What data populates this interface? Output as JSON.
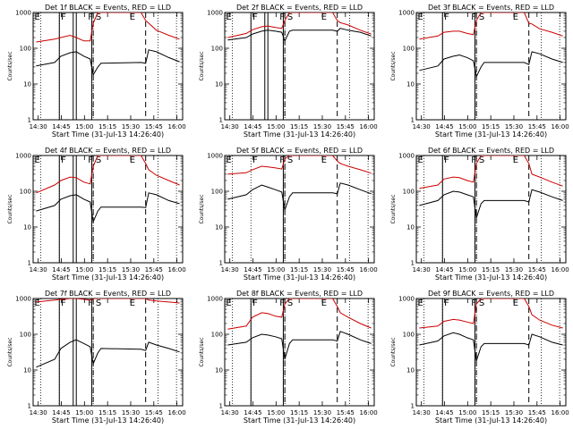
{
  "chart_data": {
    "type": "line",
    "x_label": "Start Time (31-Jul-13 14:26:40)",
    "y_label": "Counts/sec",
    "x_ticks": [
      "14:30",
      "14:45",
      "15:00",
      "15:15",
      "15:30",
      "15:45",
      "16:00"
    ],
    "y_ticks": [
      "1",
      "10",
      "100",
      "1000"
    ],
    "y_scale": "log",
    "ylim": [
      1,
      1000
    ],
    "x_range_minutes": [
      0,
      97
    ],
    "grid": false,
    "series_colors": {
      "events": "#000000",
      "lld": "#cc0000"
    },
    "dotted_markers_min": [
      5,
      17,
      39,
      81,
      93
    ],
    "dashed_markers_min": [
      39,
      73
    ],
    "flag_letters": [
      "E",
      "F",
      "F",
      "S",
      "E"
    ],
    "panels": [
      {
        "title": "Det 1f BLACK = Events, RED = LLD",
        "solid_markers_min": [
          17,
          26,
          28,
          38
        ],
        "events": [
          [
            2,
            32
          ],
          [
            14,
            40
          ],
          [
            18,
            60
          ],
          [
            24,
            75
          ],
          [
            28,
            80
          ],
          [
            33,
            60
          ],
          [
            37,
            50
          ],
          [
            39,
            18
          ],
          [
            42,
            30
          ],
          [
            44,
            38
          ],
          [
            70,
            40
          ],
          [
            73,
            38
          ],
          [
            75,
            90
          ],
          [
            80,
            80
          ],
          [
            88,
            55
          ],
          [
            95,
            42
          ]
        ],
        "lld": [
          [
            2,
            150
          ],
          [
            14,
            180
          ],
          [
            18,
            200
          ],
          [
            24,
            230
          ],
          [
            28,
            200
          ],
          [
            33,
            160
          ],
          [
            37,
            160
          ],
          [
            39,
            500
          ],
          [
            42,
            1000
          ],
          [
            70,
            1000
          ],
          [
            73,
            600
          ],
          [
            75,
            500
          ],
          [
            80,
            320
          ],
          [
            88,
            230
          ],
          [
            95,
            180
          ]
        ]
      },
      {
        "title": "Det 2f BLACK = Events, RED = LLD",
        "solid_markers_min": [
          17,
          26,
          28,
          38
        ],
        "events": [
          [
            2,
            170
          ],
          [
            14,
            200
          ],
          [
            18,
            250
          ],
          [
            24,
            300
          ],
          [
            28,
            320
          ],
          [
            33,
            300
          ],
          [
            37,
            280
          ],
          [
            39,
            160
          ],
          [
            42,
            300
          ],
          [
            44,
            320
          ],
          [
            70,
            320
          ],
          [
            73,
            300
          ],
          [
            75,
            360
          ],
          [
            80,
            320
          ],
          [
            88,
            280
          ],
          [
            95,
            220
          ]
        ],
        "lld": [
          [
            2,
            200
          ],
          [
            14,
            260
          ],
          [
            18,
            330
          ],
          [
            24,
            400
          ],
          [
            28,
            420
          ],
          [
            33,
            380
          ],
          [
            37,
            360
          ],
          [
            39,
            600
          ],
          [
            42,
            1000
          ],
          [
            70,
            1000
          ],
          [
            73,
            600
          ],
          [
            75,
            520
          ],
          [
            80,
            450
          ],
          [
            88,
            320
          ],
          [
            95,
            250
          ]
        ]
      },
      {
        "title": "Det 3f BLACK = Events, RED = LLD",
        "solid_markers_min": [
          17,
          38
        ],
        "events": [
          [
            2,
            24
          ],
          [
            14,
            32
          ],
          [
            18,
            50
          ],
          [
            24,
            60
          ],
          [
            28,
            65
          ],
          [
            33,
            55
          ],
          [
            37,
            45
          ],
          [
            39,
            16
          ],
          [
            42,
            30
          ],
          [
            44,
            40
          ],
          [
            70,
            40
          ],
          [
            73,
            35
          ],
          [
            75,
            80
          ],
          [
            80,
            70
          ],
          [
            88,
            50
          ],
          [
            95,
            40
          ]
        ],
        "lld": [
          [
            2,
            180
          ],
          [
            14,
            220
          ],
          [
            18,
            280
          ],
          [
            24,
            300
          ],
          [
            28,
            300
          ],
          [
            33,
            260
          ],
          [
            37,
            240
          ],
          [
            39,
            600
          ],
          [
            42,
            1000
          ],
          [
            70,
            1000
          ],
          [
            73,
            500
          ],
          [
            75,
            480
          ],
          [
            80,
            350
          ],
          [
            88,
            280
          ],
          [
            95,
            220
          ]
        ]
      },
      {
        "title": "Det 4f BLACK = Events, RED = LLD",
        "solid_markers_min": [
          17,
          26,
          28,
          38
        ],
        "events": [
          [
            2,
            28
          ],
          [
            14,
            40
          ],
          [
            18,
            60
          ],
          [
            24,
            75
          ],
          [
            28,
            80
          ],
          [
            33,
            60
          ],
          [
            37,
            50
          ],
          [
            39,
            14
          ],
          [
            42,
            28
          ],
          [
            44,
            36
          ],
          [
            70,
            36
          ],
          [
            73,
            35
          ],
          [
            75,
            90
          ],
          [
            80,
            80
          ],
          [
            88,
            55
          ],
          [
            95,
            45
          ]
        ],
        "lld": [
          [
            2,
            90
          ],
          [
            14,
            150
          ],
          [
            18,
            200
          ],
          [
            24,
            250
          ],
          [
            28,
            240
          ],
          [
            33,
            180
          ],
          [
            37,
            160
          ],
          [
            39,
            500
          ],
          [
            42,
            1000
          ],
          [
            70,
            1000
          ],
          [
            73,
            600
          ],
          [
            75,
            400
          ],
          [
            80,
            280
          ],
          [
            88,
            200
          ],
          [
            95,
            150
          ]
        ]
      },
      {
        "title": "Det 5f BLACK = Events, RED = LLD",
        "solid_markers_min": [
          38
        ],
        "events": [
          [
            2,
            60
          ],
          [
            14,
            80
          ],
          [
            18,
            110
          ],
          [
            24,
            150
          ],
          [
            28,
            130
          ],
          [
            33,
            110
          ],
          [
            37,
            95
          ],
          [
            39,
            30
          ],
          [
            42,
            70
          ],
          [
            44,
            90
          ],
          [
            70,
            90
          ],
          [
            73,
            85
          ],
          [
            75,
            170
          ],
          [
            80,
            150
          ],
          [
            88,
            110
          ],
          [
            95,
            85
          ]
        ],
        "lld": [
          [
            2,
            300
          ],
          [
            14,
            330
          ],
          [
            18,
            400
          ],
          [
            24,
            500
          ],
          [
            28,
            480
          ],
          [
            33,
            450
          ],
          [
            37,
            420
          ],
          [
            39,
            800
          ],
          [
            42,
            1000
          ],
          [
            70,
            1000
          ],
          [
            73,
            700
          ],
          [
            75,
            600
          ],
          [
            80,
            500
          ],
          [
            88,
            400
          ],
          [
            95,
            320
          ]
        ]
      },
      {
        "title": "Det 6f BLACK = Events, RED = LLD",
        "solid_markers_min": [
          17,
          38
        ],
        "events": [
          [
            2,
            40
          ],
          [
            14,
            55
          ],
          [
            18,
            80
          ],
          [
            24,
            100
          ],
          [
            28,
            95
          ],
          [
            33,
            80
          ],
          [
            37,
            70
          ],
          [
            39,
            18
          ],
          [
            42,
            45
          ],
          [
            44,
            55
          ],
          [
            70,
            55
          ],
          [
            73,
            50
          ],
          [
            75,
            110
          ],
          [
            80,
            95
          ],
          [
            88,
            70
          ],
          [
            95,
            55
          ]
        ],
        "lld": [
          [
            2,
            120
          ],
          [
            14,
            150
          ],
          [
            18,
            220
          ],
          [
            24,
            250
          ],
          [
            28,
            240
          ],
          [
            33,
            200
          ],
          [
            37,
            180
          ],
          [
            39,
            600
          ],
          [
            42,
            1000
          ],
          [
            70,
            1000
          ],
          [
            73,
            600
          ],
          [
            75,
            300
          ],
          [
            80,
            250
          ],
          [
            88,
            180
          ],
          [
            95,
            140
          ]
        ]
      },
      {
        "title": "Det 7f BLACK = Events, RED = LLD",
        "solid_markers_min": [
          17,
          26,
          28,
          38
        ],
        "events": [
          [
            2,
            12
          ],
          [
            14,
            20
          ],
          [
            18,
            40
          ],
          [
            24,
            60
          ],
          [
            28,
            70
          ],
          [
            33,
            55
          ],
          [
            37,
            45
          ],
          [
            39,
            15
          ],
          [
            42,
            30
          ],
          [
            44,
            40
          ],
          [
            70,
            38
          ],
          [
            73,
            35
          ],
          [
            75,
            60
          ],
          [
            80,
            50
          ],
          [
            88,
            40
          ],
          [
            95,
            32
          ]
        ],
        "lld": [
          [
            2,
            800
          ],
          [
            14,
            900
          ],
          [
            18,
            950
          ],
          [
            24,
            1000
          ],
          [
            28,
            1000
          ],
          [
            33,
            950
          ],
          [
            37,
            900
          ],
          [
            39,
            1000
          ],
          [
            42,
            1000
          ],
          [
            70,
            1000
          ],
          [
            73,
            1000
          ],
          [
            75,
            900
          ],
          [
            80,
            850
          ],
          [
            88,
            800
          ],
          [
            95,
            750
          ]
        ]
      },
      {
        "title": "Det 8f BLACK = Events, RED = LLD",
        "solid_markers_min": [
          17,
          38
        ],
        "events": [
          [
            2,
            50
          ],
          [
            14,
            60
          ],
          [
            18,
            80
          ],
          [
            24,
            100
          ],
          [
            28,
            95
          ],
          [
            33,
            85
          ],
          [
            37,
            75
          ],
          [
            39,
            20
          ],
          [
            42,
            55
          ],
          [
            44,
            70
          ],
          [
            70,
            70
          ],
          [
            73,
            65
          ],
          [
            75,
            120
          ],
          [
            80,
            100
          ],
          [
            88,
            70
          ],
          [
            95,
            55
          ]
        ],
        "lld": [
          [
            2,
            140
          ],
          [
            14,
            170
          ],
          [
            18,
            300
          ],
          [
            24,
            400
          ],
          [
            28,
            380
          ],
          [
            33,
            320
          ],
          [
            37,
            300
          ],
          [
            39,
            700
          ],
          [
            42,
            1000
          ],
          [
            70,
            1000
          ],
          [
            73,
            600
          ],
          [
            75,
            400
          ],
          [
            80,
            300
          ],
          [
            88,
            200
          ],
          [
            95,
            150
          ]
        ]
      },
      {
        "title": "Det 9f BLACK = Events, RED = LLD",
        "solid_markers_min": [
          17,
          38
        ],
        "events": [
          [
            2,
            50
          ],
          [
            14,
            65
          ],
          [
            18,
            90
          ],
          [
            24,
            110
          ],
          [
            28,
            100
          ],
          [
            33,
            80
          ],
          [
            37,
            70
          ],
          [
            39,
            18
          ],
          [
            42,
            45
          ],
          [
            44,
            55
          ],
          [
            70,
            55
          ],
          [
            73,
            50
          ],
          [
            75,
            100
          ],
          [
            80,
            85
          ],
          [
            88,
            60
          ],
          [
            95,
            50
          ]
        ],
        "lld": [
          [
            2,
            150
          ],
          [
            14,
            170
          ],
          [
            18,
            230
          ],
          [
            24,
            260
          ],
          [
            28,
            250
          ],
          [
            33,
            220
          ],
          [
            37,
            200
          ],
          [
            39,
            700
          ],
          [
            42,
            1000
          ],
          [
            70,
            1000
          ],
          [
            73,
            600
          ],
          [
            75,
            350
          ],
          [
            80,
            250
          ],
          [
            88,
            180
          ],
          [
            95,
            150
          ]
        ]
      }
    ]
  }
}
